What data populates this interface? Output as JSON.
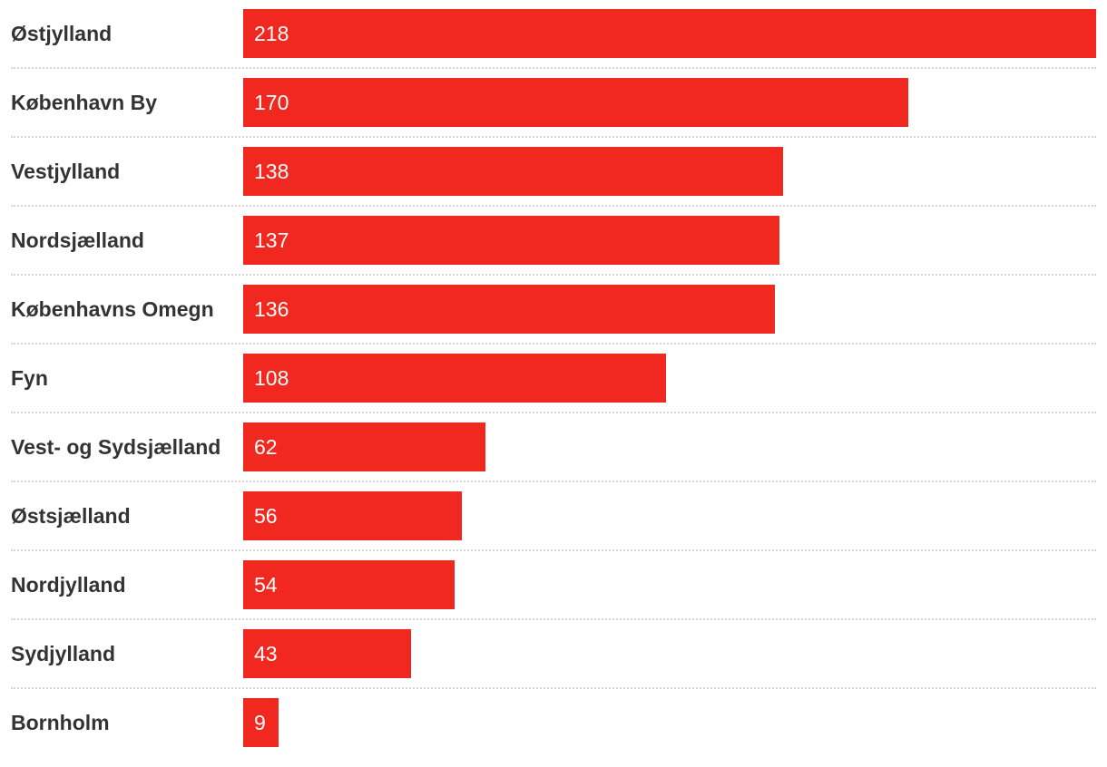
{
  "chart_data": {
    "type": "bar",
    "orientation": "horizontal",
    "categories": [
      "Østjylland",
      "København By",
      "Vestjylland",
      "Nordsjælland",
      "Københavns Omegn",
      "Fyn",
      "Vest- og Sydsjælland",
      "Østsjælland",
      "Nordjylland",
      "Sydjylland",
      "Bornholm"
    ],
    "values": [
      218,
      170,
      138,
      137,
      136,
      108,
      62,
      56,
      54,
      43,
      9
    ],
    "xlim": [
      0,
      218
    ],
    "bar_color": "#f1281f",
    "value_label_color": "#ffffff",
    "label_color": "#333333",
    "divider_color": "#d4d4d4",
    "grid": false,
    "title": "",
    "xlabel": "",
    "ylabel": ""
  }
}
